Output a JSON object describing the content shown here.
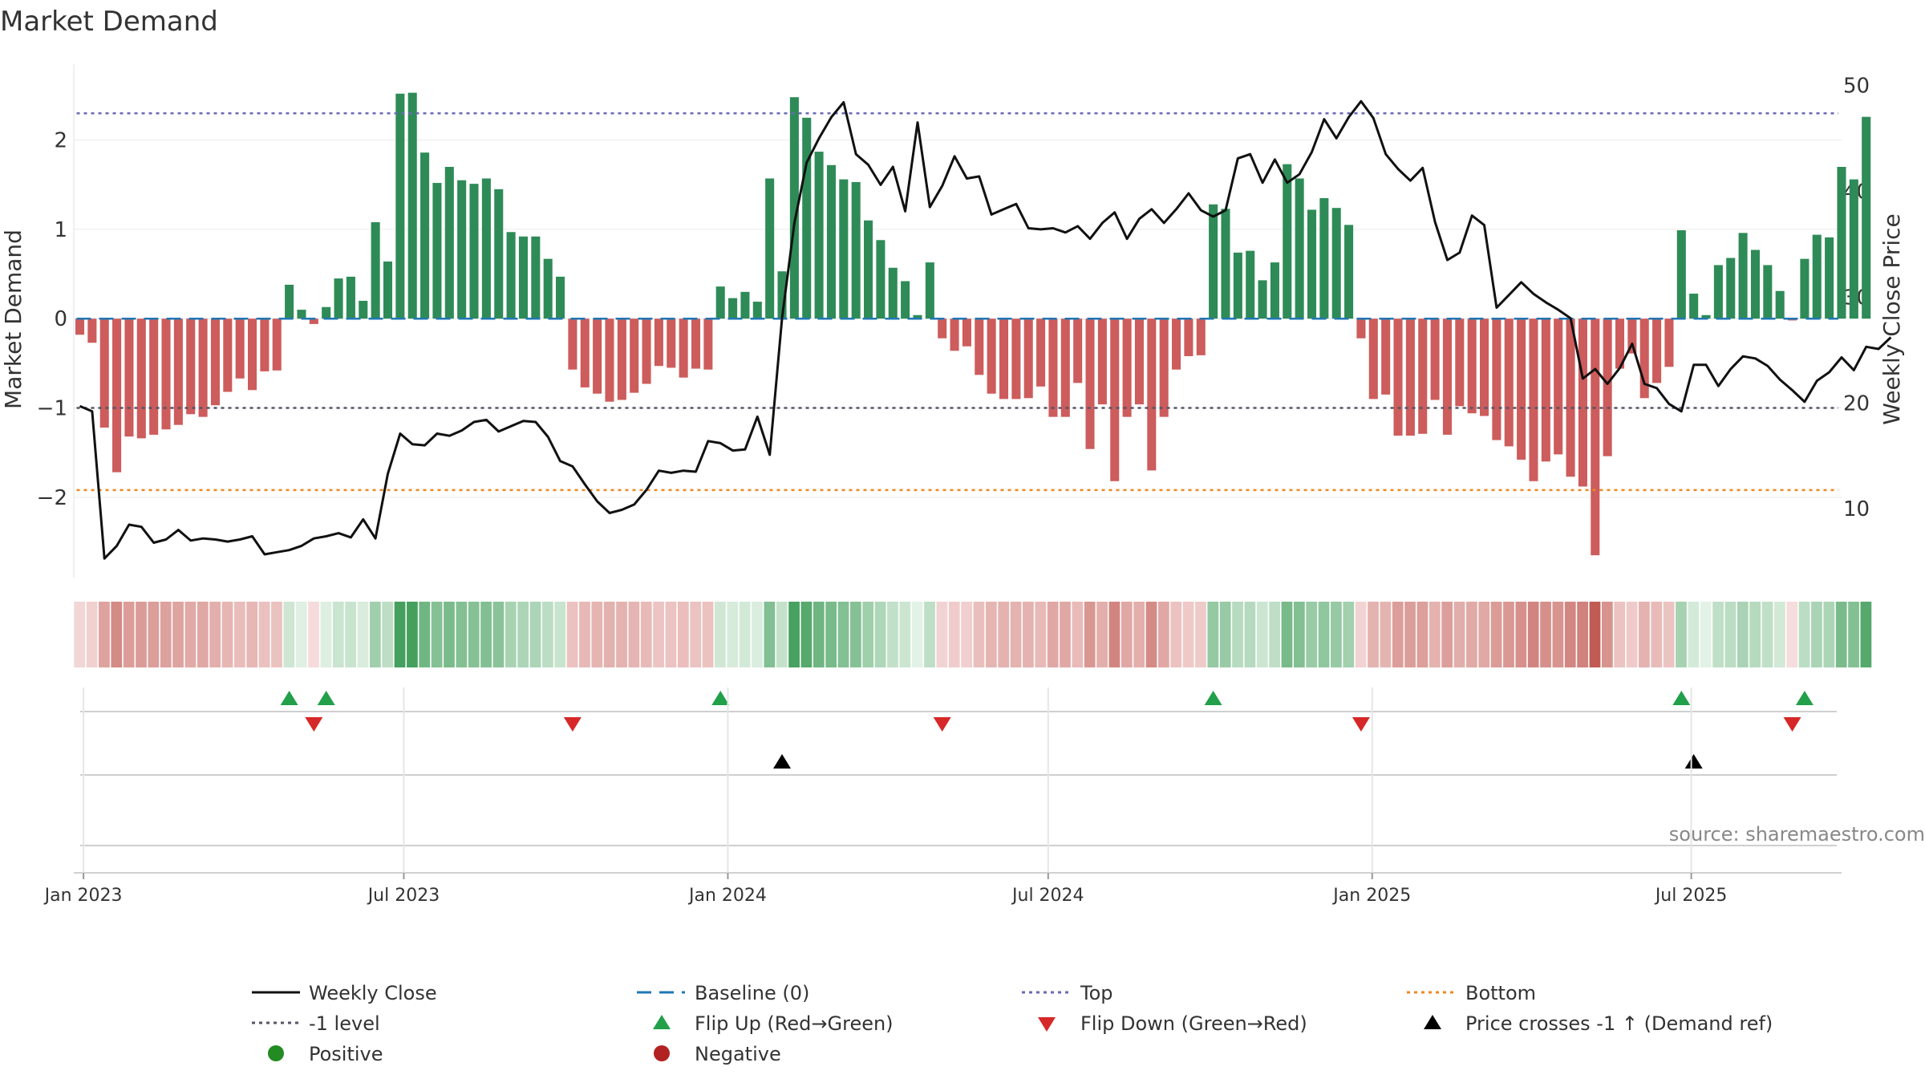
{
  "chart_data": {
    "type": "bar+line",
    "title": "Market Demand",
    "ylabel_left": "Market Demand",
    "ylabel_right": "Weekly Close Price",
    "source": "source: sharemaestro.com",
    "start_date": "2022-12-23",
    "ylim_left": [
      -2.9,
      2.85
    ],
    "ylim_right": [
      3.5,
      52
    ],
    "yticks_left": [
      2,
      1,
      0,
      -1,
      -2
    ],
    "yticks_right": [
      50,
      40,
      30,
      20,
      10
    ],
    "levels": {
      "top": 2.3,
      "minus_one": -1,
      "bottom": -1.92,
      "baseline": 0
    },
    "xticks": [
      {
        "label": "Jan 2023",
        "week": 1.3
      },
      {
        "label": "Jul 2023",
        "week": 27.3
      },
      {
        "label": "Jan 2024",
        "week": 53.6
      },
      {
        "label": "Jul 2024",
        "week": 79.6
      },
      {
        "label": "Jan 2025",
        "week": 105.9
      },
      {
        "label": "Jul 2025",
        "week": 131.8
      }
    ],
    "demand": [
      -0.18,
      -0.27,
      -1.22,
      -1.72,
      -1.32,
      -1.34,
      -1.3,
      -1.24,
      -1.19,
      -1.07,
      -1.1,
      -0.97,
      -0.82,
      -0.67,
      -0.8,
      -0.59,
      -0.58,
      0.38,
      0.1,
      -0.06,
      0.13,
      0.45,
      0.47,
      0.2,
      1.08,
      0.64,
      2.52,
      2.53,
      1.86,
      1.52,
      1.7,
      1.55,
      1.51,
      1.57,
      1.45,
      0.97,
      0.92,
      0.92,
      0.67,
      0.47,
      -0.57,
      -0.77,
      -0.84,
      -0.93,
      -0.91,
      -0.83,
      -0.73,
      -0.53,
      -0.55,
      -0.66,
      -0.56,
      -0.57,
      0.36,
      0.23,
      0.3,
      0.19,
      1.57,
      0.53,
      2.48,
      2.25,
      1.87,
      1.72,
      1.56,
      1.53,
      1.1,
      0.88,
      0.57,
      0.42,
      0.04,
      0.63,
      -0.22,
      -0.36,
      -0.31,
      -0.63,
      -0.84,
      -0.9,
      -0.9,
      -0.89,
      -0.76,
      -1.1,
      -1.1,
      -0.72,
      -1.46,
      -0.96,
      -1.82,
      -1.1,
      -0.96,
      -1.7,
      -1.1,
      -0.57,
      -0.42,
      -0.41,
      1.28,
      1.23,
      0.74,
      0.76,
      0.43,
      0.63,
      1.73,
      1.57,
      1.22,
      1.35,
      1.24,
      1.05,
      -0.22,
      -0.9,
      -0.85,
      -1.31,
      -1.31,
      -1.29,
      -0.91,
      -1.3,
      -0.98,
      -1.06,
      -1.09,
      -1.36,
      -1.43,
      -1.58,
      -1.82,
      -1.6,
      -1.52,
      -1.77,
      -1.88,
      -2.65,
      -1.54,
      -0.56,
      -0.39,
      -0.89,
      -0.72,
      -0.54,
      0.99,
      0.28,
      0.04,
      0.6,
      0.68,
      0.96,
      0.77,
      0.6,
      0.31,
      -0.02,
      0.67,
      0.94,
      0.91,
      1.7,
      1.56,
      2.26
    ],
    "close": [
      19.7,
      19.2,
      5.3,
      6.5,
      8.5,
      8.3,
      6.8,
      7.1,
      8,
      7,
      7.2,
      7.1,
      6.9,
      7.1,
      7.4,
      5.7,
      5.9,
      6.1,
      6.5,
      7.2,
      7.4,
      7.7,
      7.3,
      9,
      7.2,
      13.3,
      17.1,
      16.1,
      16,
      17.1,
      16.9,
      17.4,
      18.2,
      18.4,
      17.3,
      17.8,
      18.3,
      18.2,
      16.8,
      14.5,
      14,
      12.3,
      10.7,
      9.6,
      9.9,
      10.4,
      11.8,
      13.6,
      13.4,
      13.6,
      13.5,
      16.4,
      16.2,
      15.5,
      15.6,
      18.7,
      15.1,
      28,
      37,
      42.7,
      45,
      47,
      48.4,
      43.5,
      42.5,
      40.6,
      42.3,
      38.1,
      46.5,
      38.5,
      40.5,
      43.3,
      41.2,
      41.4,
      37.8,
      38.3,
      38.8,
      36.5,
      36.4,
      36.5,
      36.1,
      36.7,
      35.5,
      37,
      38,
      35.5,
      37.4,
      38.3,
      37,
      38.3,
      39.8,
      38.2,
      37.6,
      38.2,
      43.1,
      43.5,
      40.8,
      43,
      40.8,
      41.6,
      43.7,
      46.8,
      45,
      47,
      48.5,
      46.9,
      43.5,
      42.1,
      41,
      42.2,
      37.1,
      33.5,
      34.2,
      37.7,
      36.8,
      29,
      30.2,
      31.4,
      30.3,
      29.5,
      28.8,
      28,
      22.3,
      23.2,
      21.8,
      23.3,
      25.6,
      21.8,
      21.4,
      19.9,
      19.2,
      23.6,
      23.6,
      21.6,
      23.2,
      24.4,
      24.2,
      23.5,
      22.2,
      21.2,
      20.1,
      22.1,
      22.9,
      24.3,
      23.1,
      25.3,
      25.1,
      26.2
    ]
  },
  "legend": {
    "weekly_close": "Weekly Close",
    "baseline": "Baseline (0)",
    "top": "Top",
    "bottom": "Bottom",
    "minus_one": "-1 level",
    "flip_up": "Flip Up (Red→Green)",
    "flip_down": "Flip Down (Green→Red)",
    "price_cross": "Price crosses -1 ↑ (Demand ref)",
    "positive": "Positive",
    "negative": "Negative"
  },
  "colors": {
    "positive": "#2e8b57",
    "negative": "#cd5c5c",
    "line": "#111111",
    "baseline": "#1f77b4",
    "top": "#6a6ab5",
    "minus_one": "#555566",
    "bottom": "#ee8822",
    "flip_up": "#22a04a",
    "flip_down": "#d62828",
    "cross": "#000000",
    "pos_dot": "#228b22",
    "neg_dot": "#b22222"
  }
}
